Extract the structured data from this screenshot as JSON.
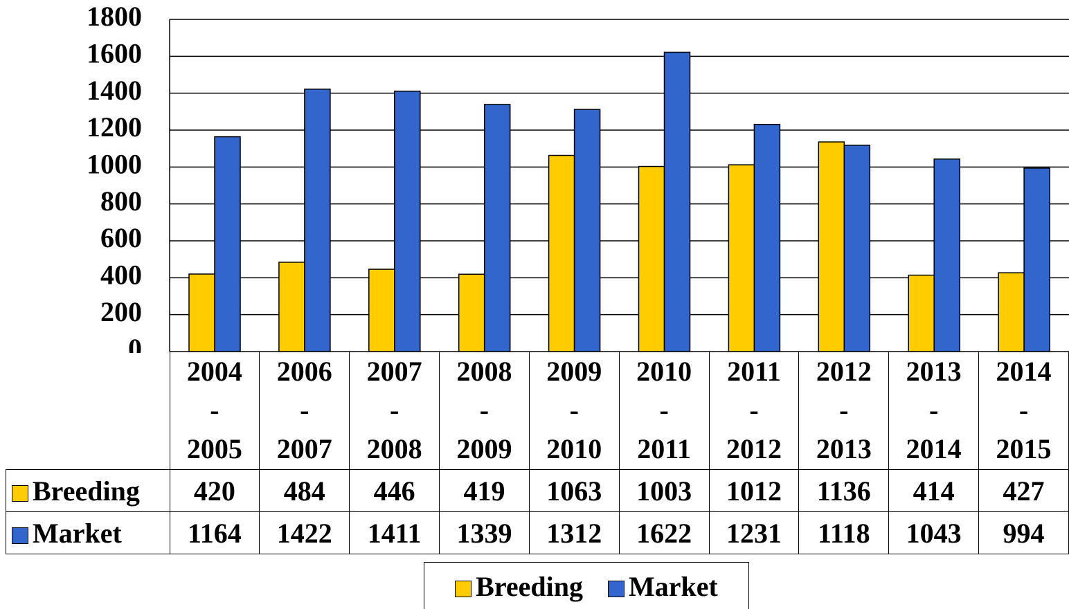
{
  "chart_data": {
    "type": "bar",
    "categories": [
      "2004 - 2005",
      "2006 - 2007",
      "2007 - 2008",
      "2008 - 2009",
      "2009 - 2010",
      "2010 - 2011",
      "2011 - 2012",
      "2012 - 2013",
      "2013 - 2014",
      "2014 - 2015"
    ],
    "series": [
      {
        "name": "Breeding",
        "color": "#ffcc00",
        "values": [
          420,
          484,
          446,
          419,
          1063,
          1003,
          1012,
          1136,
          414,
          427
        ]
      },
      {
        "name": "Market",
        "color": "#3366cc",
        "values": [
          1164,
          1422,
          1411,
          1339,
          1312,
          1622,
          1231,
          1118,
          1043,
          994
        ]
      }
    ],
    "ylim": [
      0,
      1800
    ],
    "yticks": [
      0,
      200,
      400,
      600,
      800,
      1000,
      1200,
      1400,
      1600,
      1800
    ],
    "grid": true
  }
}
